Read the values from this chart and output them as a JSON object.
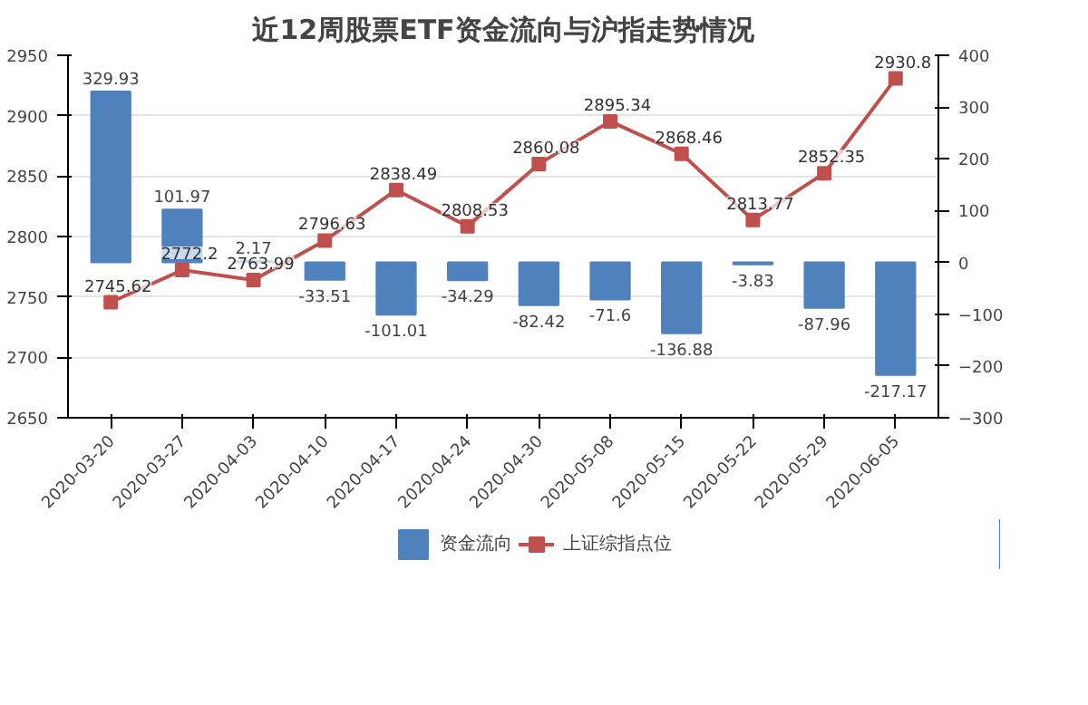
{
  "chart_data": {
    "type": "bar",
    "title": "近12周股票ETF资金流向与沪指走势情况",
    "categories": [
      "2020-03-20",
      "2020-03-27",
      "2020-04-03",
      "2020-04-10",
      "2020-04-17",
      "2020-04-24",
      "2020-04-30",
      "2020-05-08",
      "2020-05-15",
      "2020-05-22",
      "2020-05-29",
      "2020-06-05"
    ],
    "series": [
      {
        "name": "资金流向",
        "axis": "y2",
        "color": "#4f81bd",
        "values": [
          329.93,
          101.97,
          2.17,
          -33.51,
          -101.01,
          -34.29,
          -82.42,
          -71.6,
          -136.88,
          -3.83,
          -87.96,
          -217.17
        ]
      },
      {
        "name": "上证综指点位",
        "type": "line",
        "color": "#c0504d",
        "marker": "square",
        "values": [
          2745.62,
          2772.2,
          2763.99,
          2796.63,
          2838.49,
          2808.53,
          2860.08,
          2895.34,
          2868.46,
          2813.77,
          2852.35,
          2930.8
        ]
      }
    ],
    "ylim": [
      2650,
      2950
    ],
    "yticks": [
      2650,
      2700,
      2750,
      2800,
      2850,
      2900,
      2950
    ],
    "y2lim": [
      -300,
      400
    ],
    "y2ticks": [
      -300,
      -200,
      -100,
      0,
      100,
      200,
      300,
      400
    ],
    "grid": "y",
    "legend": "bottom",
    "data_labels": true
  }
}
